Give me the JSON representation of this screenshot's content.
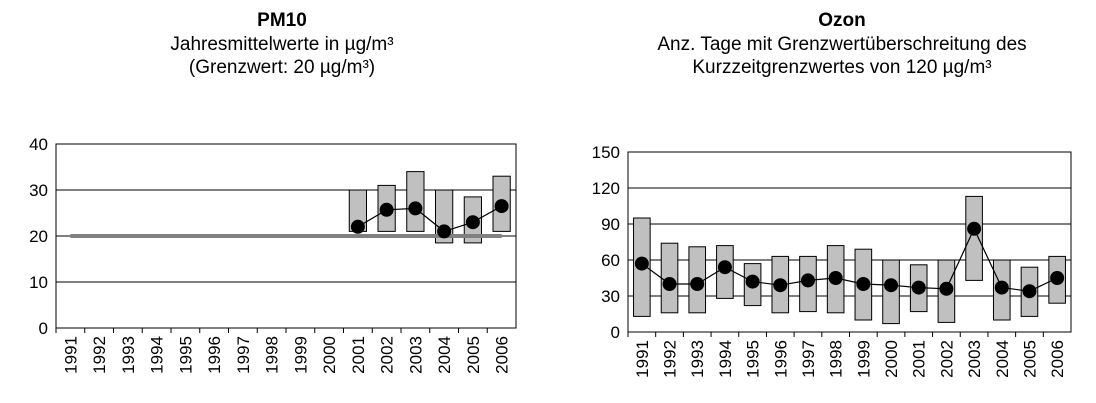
{
  "chart_data": [
    {
      "type": "range-line",
      "title": "PM10",
      "subtitle": [
        "Jahresmittelwerte in µg/m³",
        "(Grenzwert: 20 µg/m³)"
      ],
      "categories": [
        "1991",
        "1992",
        "1993",
        "1994",
        "1995",
        "1996",
        "1997",
        "1998",
        "1999",
        "2000",
        "2001",
        "2002",
        "2003",
        "2004",
        "2005",
        "2006"
      ],
      "range_low": [
        null,
        null,
        null,
        null,
        null,
        null,
        null,
        null,
        null,
        null,
        21,
        21,
        21,
        18.5,
        18.5,
        21
      ],
      "range_high": [
        null,
        null,
        null,
        null,
        null,
        null,
        null,
        null,
        null,
        null,
        30,
        31,
        34,
        30,
        28.5,
        33
      ],
      "values": [
        null,
        null,
        null,
        null,
        null,
        null,
        null,
        null,
        null,
        null,
        22,
        25.7,
        26,
        21,
        23,
        26.5
      ],
      "limit": 20,
      "limit_color": "#808080",
      "bar_color": "#c0c0c0",
      "color": "#000000",
      "ylim": [
        0,
        40
      ],
      "yticks": [
        0,
        10,
        20,
        30,
        40
      ],
      "grid": true
    },
    {
      "type": "range-line",
      "title": "Ozon",
      "subtitle": [
        "Anz. Tage mit Grenzwertüberschreitung des",
        "Kurzzeitgrenzwertes von 120 µg/m³"
      ],
      "categories": [
        "1991",
        "1992",
        "1993",
        "1994",
        "1995",
        "1996",
        "1997",
        "1998",
        "1999",
        "2000",
        "2001",
        "2002",
        "2003",
        "2004",
        "2005",
        "2006"
      ],
      "range_low": [
        13,
        16,
        16,
        28,
        22,
        16,
        17,
        16,
        10,
        7,
        17,
        8,
        43,
        10,
        13,
        24
      ],
      "range_high": [
        95,
        74,
        71,
        72,
        57,
        63,
        63,
        72,
        69,
        60,
        56,
        60,
        113,
        60,
        54,
        63
      ],
      "values": [
        57,
        40,
        40,
        54,
        42,
        39,
        43,
        45,
        40,
        39,
        37,
        36,
        86,
        37,
        34,
        45
      ],
      "bar_color": "#c0c0c0",
      "color": "#000000",
      "ylim": [
        0,
        150
      ],
      "yticks": [
        0,
        30,
        60,
        90,
        120,
        150
      ],
      "grid": true
    }
  ]
}
